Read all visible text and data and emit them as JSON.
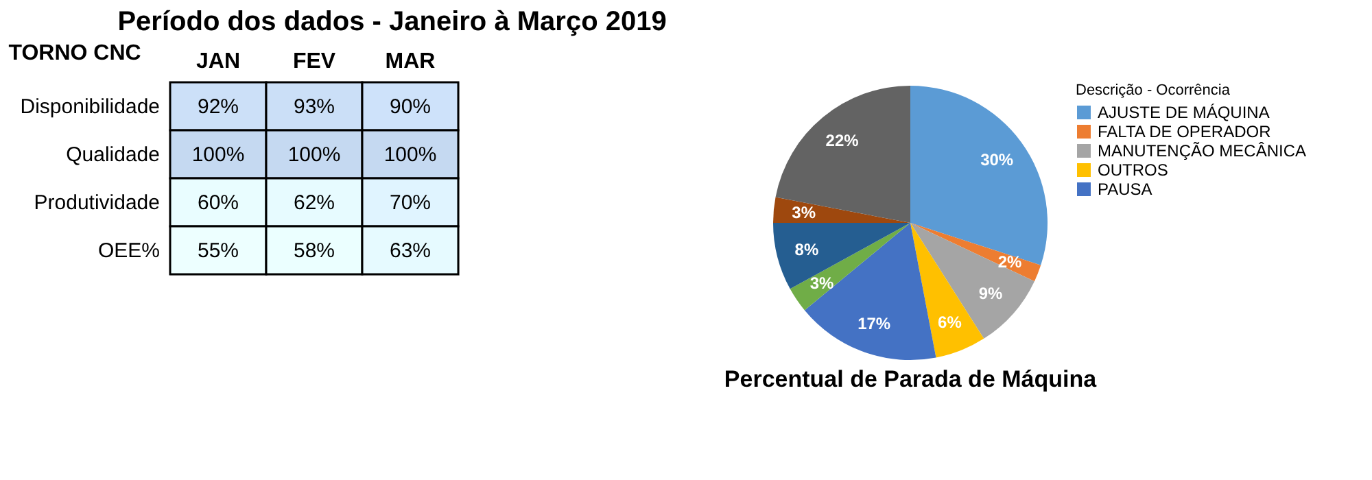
{
  "chart_data": [
    {
      "type": "heatmap",
      "title": "Período dos dados - Janeiro à Março 2019",
      "ylabel": "TORNO CNC",
      "categories": [
        "JAN",
        "FEV",
        "MAR"
      ],
      "y_categories": [
        "Disponibilidade",
        "Qualidade",
        "Produtividade",
        "OEE%"
      ],
      "cells": [
        [
          92,
          93,
          90
        ],
        [
          100,
          100,
          100
        ],
        [
          60,
          62,
          70
        ],
        [
          55,
          58,
          63
        ]
      ],
      "cell_labels": [
        [
          "92%",
          "93%",
          "90%"
        ],
        [
          "100%",
          "100%",
          "100%"
        ],
        [
          "60%",
          "62%",
          "70%"
        ],
        [
          "55%",
          "58%",
          "63%"
        ]
      ]
    },
    {
      "type": "pie",
      "title": "Percentual de Parada de Máquina",
      "legend_title": "Descrição - Ocorrência",
      "legend": "right",
      "data_labels": true,
      "value_labels": [
        "30%",
        "2%",
        "9%",
        "6%",
        "17%",
        "3%",
        "8%",
        "3%",
        "22%"
      ],
      "categories": [
        "AJUSTE DE MÁQUINA",
        "FALTA DE OPERADOR",
        "MANUTENÇÃO MECÂNICA",
        "OUTROS",
        "PAUSA",
        null,
        null,
        null,
        null
      ],
      "values": [
        30,
        2,
        9,
        6,
        17,
        3,
        8,
        3,
        22
      ],
      "colors": [
        "#5b9bd5",
        "#ed7d31",
        "#a5a5a5",
        "#ffc000",
        "#4472c4",
        "#70ad47",
        "#255e91",
        "#9e480e",
        "#636363"
      ]
    }
  ]
}
